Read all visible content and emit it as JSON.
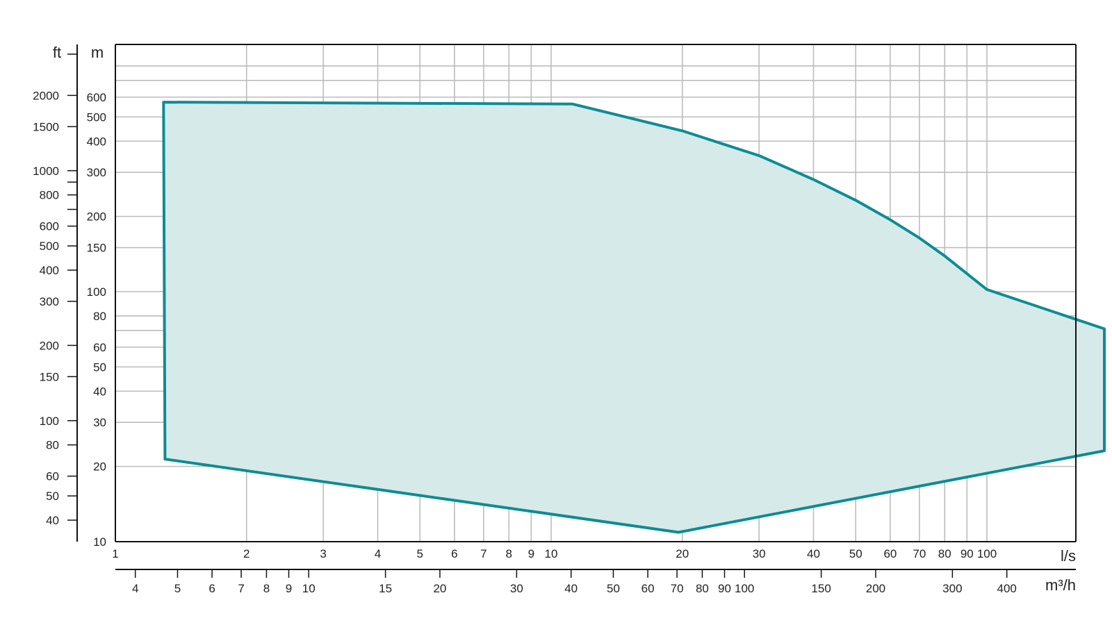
{
  "chart_data": {
    "type": "area",
    "title": "",
    "x_scale": "log",
    "y_scale": "log",
    "grid": true,
    "x_primary": {
      "unit_label": "l/s",
      "range": [
        1,
        200
      ],
      "ticks": [
        {
          "value": 1,
          "label": "1"
        },
        {
          "value": 2,
          "label": "2"
        },
        {
          "value": 3,
          "label": "3"
        },
        {
          "value": 4,
          "label": "4"
        },
        {
          "value": 5,
          "label": "5"
        },
        {
          "value": 6,
          "label": "6"
        },
        {
          "value": 7,
          "label": "7"
        },
        {
          "value": 8,
          "label": "8"
        },
        {
          "value": 9,
          "label": "9"
        },
        {
          "value": 10,
          "label": "10"
        },
        {
          "value": 20,
          "label": "20"
        },
        {
          "value": 30,
          "label": "30"
        },
        {
          "value": 40,
          "label": "40"
        },
        {
          "value": 50,
          "label": "50"
        },
        {
          "value": 60,
          "label": "60"
        },
        {
          "value": 70,
          "label": "70"
        },
        {
          "value": 80,
          "label": "80"
        },
        {
          "value": 90,
          "label": "90"
        },
        {
          "value": 100,
          "label": "100"
        }
      ]
    },
    "x_secondary": {
      "unit_label": "m³/h",
      "ticks": [
        {
          "value": 4,
          "label": "4"
        },
        {
          "value": 5,
          "label": "5"
        },
        {
          "value": 6,
          "label": "6"
        },
        {
          "value": 7,
          "label": "7"
        },
        {
          "value": 8,
          "label": "8"
        },
        {
          "value": 9,
          "label": "9"
        },
        {
          "value": 10,
          "label": "10"
        },
        {
          "value": 15,
          "label": "15"
        },
        {
          "value": 20,
          "label": "20"
        },
        {
          "value": 30,
          "label": "30"
        },
        {
          "value": 40,
          "label": "40"
        },
        {
          "value": 50,
          "label": "50"
        },
        {
          "value": 60,
          "label": "60"
        },
        {
          "value": 70,
          "label": "70"
        },
        {
          "value": 80,
          "label": "80"
        },
        {
          "value": 90,
          "label": "90"
        },
        {
          "value": 100,
          "label": "100"
        },
        {
          "value": 150,
          "label": "150"
        },
        {
          "value": 200,
          "label": "200"
        },
        {
          "value": 300,
          "label": "300"
        },
        {
          "value": 400,
          "label": "400"
        }
      ]
    },
    "y_primary": {
      "unit_label": "m",
      "range": [
        10,
        1000
      ],
      "ticks": [
        {
          "value": 10,
          "label": "10"
        },
        {
          "value": 20,
          "label": "20"
        },
        {
          "value": 30,
          "label": "30"
        },
        {
          "value": 40,
          "label": "40"
        },
        {
          "value": 50,
          "label": "50"
        },
        {
          "value": 60,
          "label": "60"
        },
        {
          "value": 80,
          "label": "80"
        },
        {
          "value": 100,
          "label": "100"
        },
        {
          "value": 150,
          "label": "150"
        },
        {
          "value": 200,
          "label": "200"
        },
        {
          "value": 300,
          "label": "300"
        },
        {
          "value": 400,
          "label": "400"
        },
        {
          "value": 500,
          "label": "500"
        },
        {
          "value": 600,
          "label": "600"
        }
      ],
      "extra_gridlines": [
        70,
        700,
        800
      ]
    },
    "y_secondary": {
      "unit_label": "ft",
      "ticks": [
        {
          "value": 40,
          "label": "40"
        },
        {
          "value": 50,
          "label": "50"
        },
        {
          "value": 60,
          "label": "60"
        },
        {
          "value": 80,
          "label": "80"
        },
        {
          "value": 100,
          "label": "100"
        },
        {
          "value": 150,
          "label": "150"
        },
        {
          "value": 200,
          "label": "200"
        },
        {
          "value": 300,
          "label": "300"
        },
        {
          "value": 400,
          "label": "400"
        },
        {
          "value": 500,
          "label": "500"
        },
        {
          "value": 600,
          "label": "600"
        },
        {
          "value": 800,
          "label": "800"
        },
        {
          "value": 1000,
          "label": "1000"
        },
        {
          "value": 1500,
          "label": "1500"
        },
        {
          "value": 2000,
          "label": "2000"
        }
      ],
      "minor_marks": [
        700,
        900
      ]
    },
    "envelope": {
      "fill_color": "#d6eaea",
      "line_color": "#0e8c94",
      "points": [
        [
          1.29,
          573
        ],
        [
          11.2,
          563
        ],
        [
          20,
          440
        ],
        [
          30,
          350
        ],
        [
          40,
          281
        ],
        [
          50,
          232
        ],
        [
          60,
          194
        ],
        [
          70,
          164
        ],
        [
          80,
          139
        ],
        [
          90,
          118
        ],
        [
          100,
          102
        ],
        [
          186,
          71
        ],
        [
          186,
          23.1
        ],
        [
          19.6,
          10.9
        ],
        [
          1.3,
          21.4
        ]
      ]
    }
  }
}
